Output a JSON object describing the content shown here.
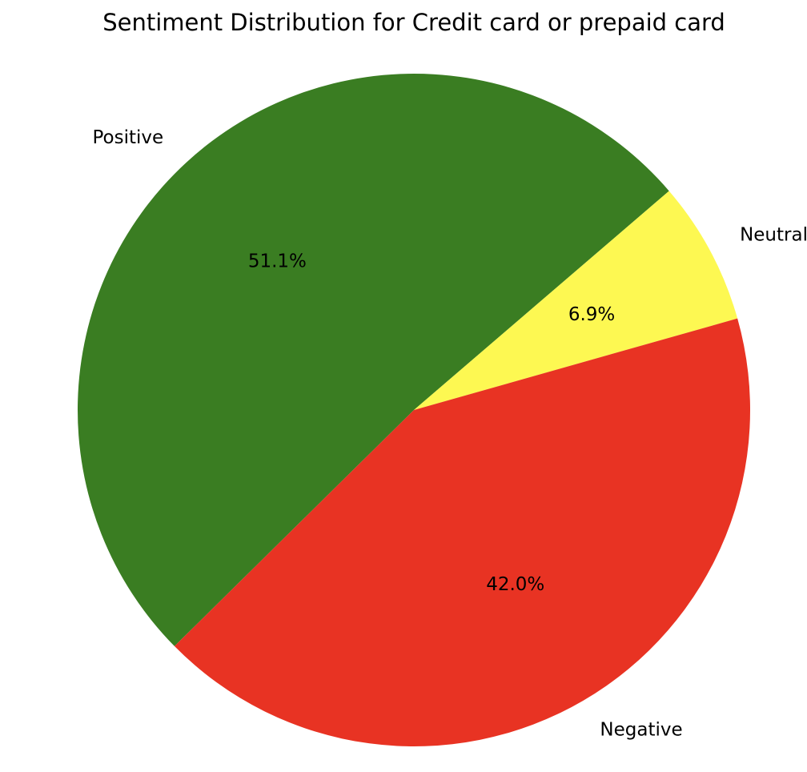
{
  "chart_data": {
    "type": "pie",
    "title": "Sentiment Distribution for Credit card or prepaid card",
    "slices": [
      {
        "label": "Positive",
        "value": 51.1,
        "display": "51.1%",
        "color": "#3a7d22"
      },
      {
        "label": "Neutral",
        "value": 6.9,
        "display": "6.9%",
        "color": "#fdf852"
      },
      {
        "label": "Negative",
        "value": 42.0,
        "display": "42.0%",
        "color": "#e83323"
      }
    ],
    "direction": "clockwise",
    "legend": "none"
  }
}
